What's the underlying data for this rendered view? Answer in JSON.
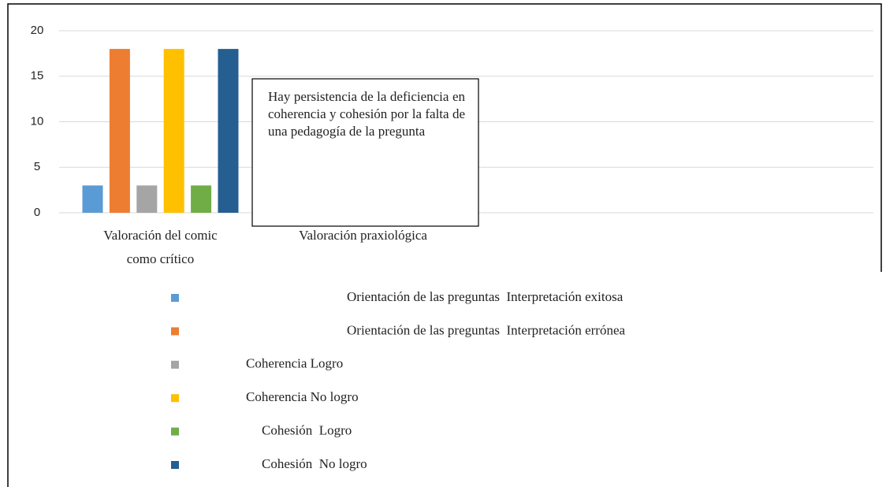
{
  "chart_data": {
    "type": "bar",
    "categories": [
      "Valoración del comic como crítico",
      "Valoración praxiológica"
    ],
    "series": [
      {
        "name": "Orientación de las preguntas  Interpretación exitosa",
        "color": "#5b9bd5",
        "values": [
          3,
          null
        ]
      },
      {
        "name": "Orientación de las preguntas  Interpretación errónea",
        "color": "#ed7d31",
        "values": [
          18,
          null
        ]
      },
      {
        "name": "Coherencia Logro",
        "color": "#a5a5a5",
        "values": [
          3,
          null
        ]
      },
      {
        "name": "Coherencia No logro",
        "color": "#ffc000",
        "values": [
          18,
          null
        ]
      },
      {
        "name": "Cohesión  Logro",
        "color": "#70ad47",
        "values": [
          3,
          null
        ]
      },
      {
        "name": "Cohesión  No logro",
        "color": "#255e91",
        "values": [
          18,
          null
        ]
      }
    ],
    "ylim": [
      0,
      20
    ],
    "yticks": [
      0,
      5,
      10,
      15,
      20
    ],
    "grid": true,
    "annotation": "Hay persistencia de la deficiencia en coherencia y cohesión por la falta de una pedagogía de la pregunta"
  }
}
